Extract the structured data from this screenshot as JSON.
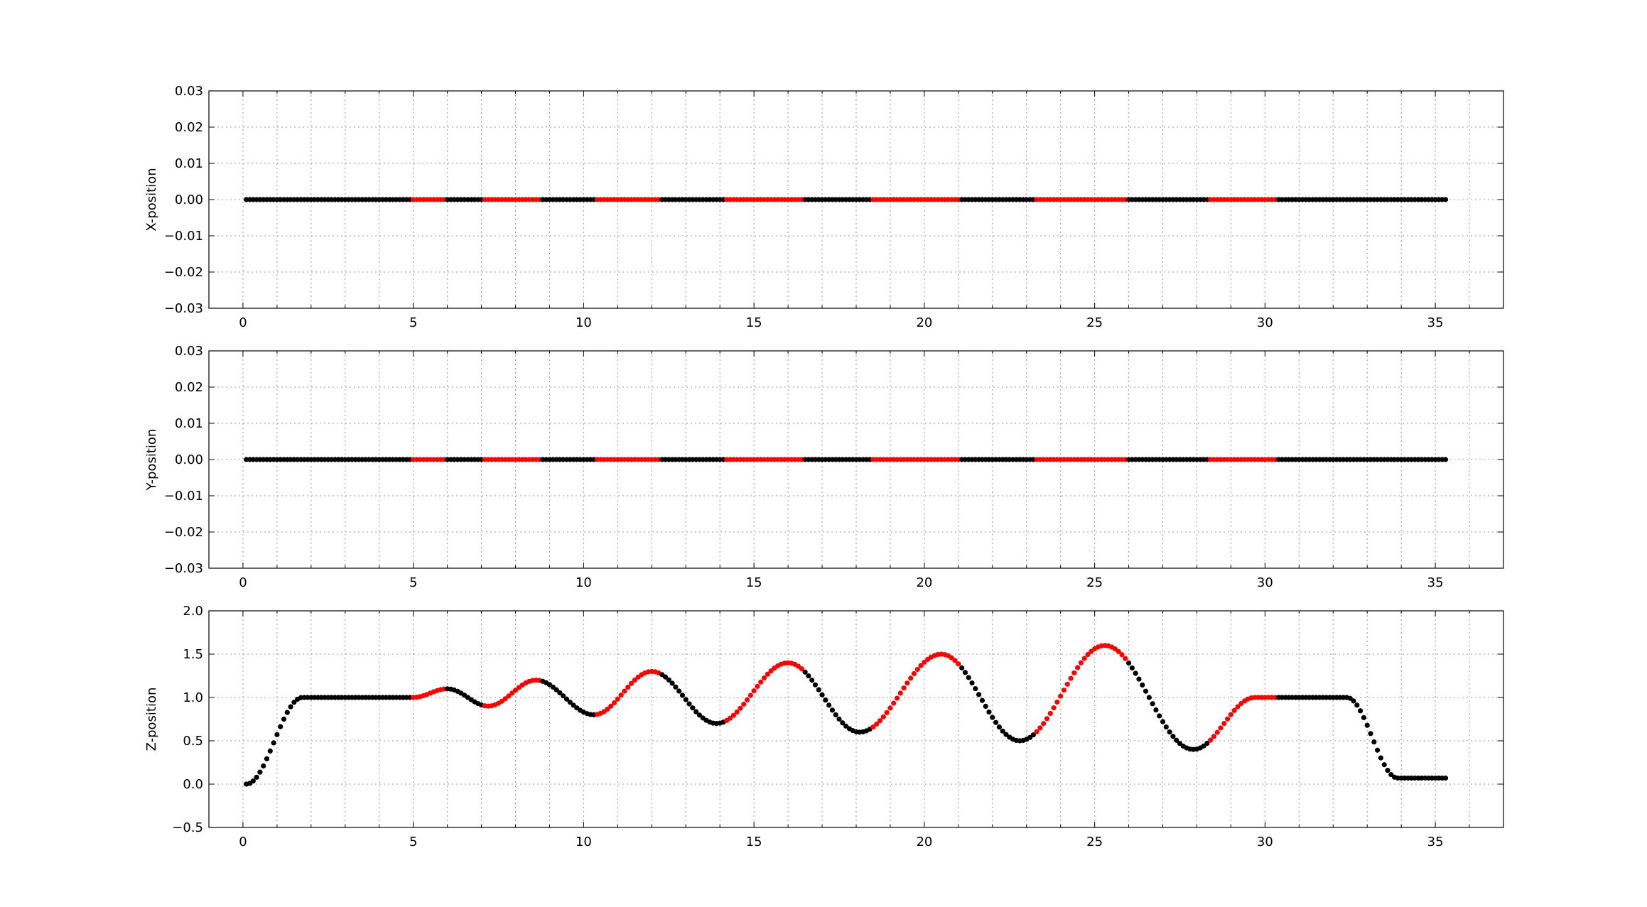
{
  "chart_data": [
    {
      "type": "scatter",
      "ylabel": "X-position",
      "xlim": [
        -1,
        37
      ],
      "ylim": [
        -0.03,
        0.03
      ],
      "xticks": [
        0,
        5,
        10,
        15,
        20,
        25,
        30,
        35
      ],
      "xtick_labels": [
        "0",
        "5",
        "10",
        "15",
        "20",
        "25",
        "30",
        "35"
      ],
      "yticks": [
        -0.03,
        -0.02,
        -0.01,
        0.0,
        0.01,
        0.02,
        0.03
      ],
      "ytick_labels": [
        "−0.03",
        "−0.02",
        "−0.01",
        "0.00",
        "0.01",
        "0.02",
        "0.03"
      ],
      "grid": true,
      "signal": "constant",
      "value": 0.0
    },
    {
      "type": "scatter",
      "ylabel": "Y-position",
      "xlim": [
        -1,
        37
      ],
      "ylim": [
        -0.03,
        0.03
      ],
      "xticks": [
        0,
        5,
        10,
        15,
        20,
        25,
        30,
        35
      ],
      "xtick_labels": [
        "0",
        "5",
        "10",
        "15",
        "20",
        "25",
        "30",
        "35"
      ],
      "yticks": [
        -0.03,
        -0.02,
        -0.01,
        0.0,
        0.01,
        0.02,
        0.03
      ],
      "ytick_labels": [
        "−0.03",
        "−0.02",
        "−0.01",
        "0.00",
        "0.01",
        "0.02",
        "0.03"
      ],
      "grid": true,
      "signal": "constant",
      "value": 0.0
    },
    {
      "type": "scatter",
      "ylabel": "Z-position",
      "xlim": [
        -1,
        37
      ],
      "ylim": [
        -0.5,
        2.0
      ],
      "xticks": [
        0,
        5,
        10,
        15,
        20,
        25,
        30,
        35
      ],
      "xtick_labels": [
        "0",
        "5",
        "10",
        "15",
        "20",
        "25",
        "30",
        "35"
      ],
      "yticks": [
        -0.5,
        0.0,
        0.5,
        1.0,
        1.5,
        2.0
      ],
      "ytick_labels": [
        "−0.5",
        "0.0",
        "0.5",
        "1.0",
        "1.5",
        "2.0"
      ],
      "grid": true,
      "signal": "z_profile",
      "knots": [
        [
          0.1,
          0.0
        ],
        [
          1.75,
          1.0
        ],
        [
          5.0,
          1.0
        ],
        [
          6.0,
          1.1
        ],
        [
          7.2,
          0.9
        ],
        [
          8.6,
          1.2
        ],
        [
          10.3,
          0.8
        ],
        [
          12.0,
          1.3
        ],
        [
          13.9,
          0.7
        ],
        [
          16.0,
          1.4
        ],
        [
          18.1,
          0.6
        ],
        [
          20.5,
          1.5
        ],
        [
          22.8,
          0.5
        ],
        [
          25.3,
          1.6
        ],
        [
          27.9,
          0.4
        ],
        [
          29.7,
          1.0
        ],
        [
          32.4,
          1.0
        ],
        [
          33.9,
          0.07
        ],
        [
          35.3,
          0.07
        ]
      ]
    }
  ],
  "series_style": {
    "x_start": 0.1,
    "x_end": 35.3,
    "x_step": 0.1,
    "base_color": "#000000",
    "highlight_color": "#ff0000",
    "highlight_intervals": [
      [
        5.0,
        5.9
      ],
      [
        7.1,
        8.7
      ],
      [
        10.4,
        12.2
      ],
      [
        14.2,
        16.4
      ],
      [
        18.5,
        21.0
      ],
      [
        23.3,
        25.9
      ],
      [
        28.4,
        30.3
      ]
    ]
  }
}
